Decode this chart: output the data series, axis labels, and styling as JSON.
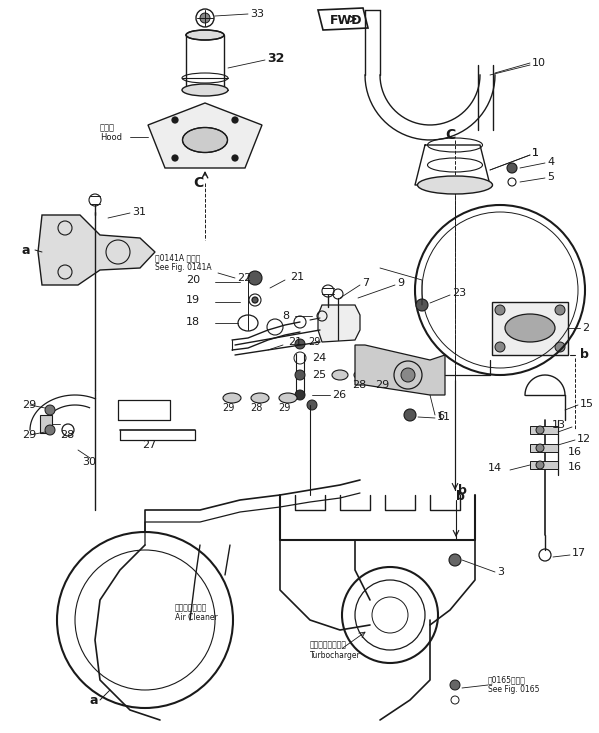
{
  "bg_color": "#ffffff",
  "line_color": "#1a1a1a",
  "fig_width": 5.99,
  "fig_height": 7.33,
  "dpi": 100,
  "xlim": [
    0,
    599
  ],
  "ylim": [
    0,
    733
  ]
}
